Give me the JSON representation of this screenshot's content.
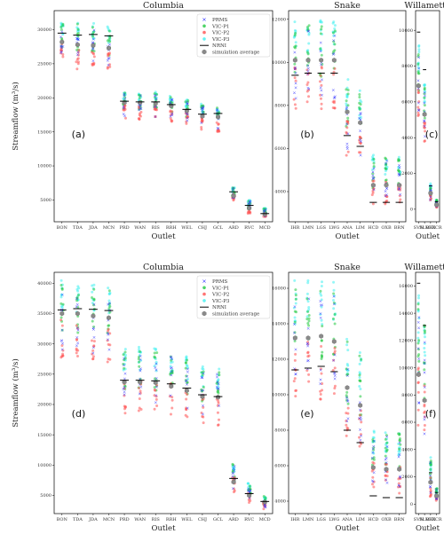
{
  "colors": {
    "prms": "#3a3aff",
    "p1": "#20c840",
    "p2": "#ff5050",
    "p3": "#40f0f0",
    "nrni": "#000000",
    "avg": "#8a8a8a"
  },
  "legend": {
    "labels": [
      "PRMS",
      "VIC-P1",
      "VIC-P2",
      "VIC-P3",
      "NRNI",
      "simulation average"
    ]
  },
  "ylabel": "Streamflow (m³/s)",
  "xlabel": "Outlet",
  "chart_data": [
    {
      "id": "a",
      "type": "scatter",
      "row": 0,
      "basin": "Columbia",
      "title": "Columbia",
      "panel_label": "(a)",
      "ylim": [
        1800,
        32800
      ],
      "yticks": [
        5000,
        10000,
        15000,
        20000,
        25000,
        30000
      ],
      "categories": [
        "BON",
        "TDA",
        "JDA",
        "MCN",
        "PRD",
        "WAN",
        "RIS",
        "RRH",
        "WEL",
        "CHJ",
        "GCL",
        "ARD",
        "RVC",
        "MCD"
      ],
      "nrni": [
        29500,
        29200,
        29300,
        29100,
        19500,
        19400,
        19400,
        19000,
        18300,
        17600,
        17700,
        6200,
        4200,
        3000
      ],
      "average": [
        28200,
        27800,
        27700,
        27300,
        19300,
        19300,
        19200,
        18800,
        18100,
        17300,
        17200,
        5600,
        3800,
        2900
      ],
      "range": [
        [
          24500,
          31500
        ],
        [
          24200,
          31200
        ],
        [
          24000,
          31000
        ],
        [
          23800,
          30500
        ],
        [
          16800,
          21000
        ],
        [
          16800,
          21000
        ],
        [
          16800,
          20900
        ],
        [
          16300,
          20500
        ],
        [
          15800,
          19800
        ],
        [
          15200,
          19200
        ],
        [
          15000,
          19000
        ],
        [
          4800,
          7000
        ],
        [
          3000,
          5000
        ],
        [
          2500,
          3800
        ]
      ]
    },
    {
      "id": "b",
      "type": "scatter",
      "row": 0,
      "basin": "Snake",
      "title": "Snake",
      "panel_label": "(b)",
      "ylim": [
        2600,
        12400
      ],
      "yticks": [
        4000,
        6000,
        8000,
        10000,
        12000
      ],
      "categories": [
        "IHR",
        "LMN",
        "LGS",
        "LWG",
        "ANA",
        "LIM",
        "HCD",
        "OXB",
        "BRN"
      ],
      "nrni": [
        9400,
        9500,
        9500,
        9500,
        6600,
        6100,
        3500,
        3500,
        3500
      ],
      "average": [
        10100,
        10100,
        10100,
        10100,
        7700,
        7200,
        4300,
        4300,
        4300
      ],
      "range": [
        [
          7800,
          12000
        ],
        [
          7800,
          12000
        ],
        [
          7800,
          12000
        ],
        [
          7800,
          12000
        ],
        [
          5300,
          9300
        ],
        [
          4900,
          8700
        ],
        [
          3300,
          5700
        ],
        [
          3300,
          5700
        ],
        [
          3300,
          5700
        ]
      ]
    },
    {
      "id": "c",
      "type": "scatter",
      "row": 0,
      "basin": "Willamette",
      "title": "Willamette",
      "panel_label": "(c)",
      "ylim": [
        -700,
        11100
      ],
      "yticks": [
        0,
        2000,
        4000,
        6000,
        8000,
        10000
      ],
      "categories": [
        "SVN",
        "SLM",
        "DEX",
        "HCR"
      ],
      "nrni": [
        9900,
        7800,
        1300,
        420
      ],
      "average": [
        6900,
        5300,
        900,
        250
      ],
      "range": [
        [
          5000,
          9200
        ],
        [
          3600,
          7000
        ],
        [
          400,
          1500
        ],
        [
          100,
          550
        ]
      ]
    },
    {
      "id": "d",
      "type": "scatter",
      "row": 1,
      "basin": "Columbia",
      "title": "Columbia",
      "panel_label": "(d)",
      "ylim": [
        2000,
        41800
      ],
      "yticks": [
        5000,
        10000,
        15000,
        20000,
        25000,
        30000,
        35000,
        40000
      ],
      "categories": [
        "BON",
        "TDA",
        "JDA",
        "MCN",
        "PRD",
        "WAN",
        "RIS",
        "RRH",
        "WEL",
        "CHJ",
        "GCL",
        "ARD",
        "RVC",
        "MCD"
      ],
      "nrni": [
        35600,
        35800,
        35700,
        35500,
        24000,
        24000,
        23900,
        23400,
        22700,
        21600,
        21300,
        7800,
        5300,
        4000
      ],
      "average": [
        35000,
        35000,
        34600,
        34300,
        23700,
        23700,
        23600,
        23000,
        22300,
        21300,
        21200,
        7200,
        5000,
        3900
      ],
      "range": [
        [
          27500,
          40500
        ],
        [
          27300,
          40000
        ],
        [
          27200,
          39800
        ],
        [
          27000,
          39500
        ],
        [
          18500,
          29500
        ],
        [
          18500,
          29500
        ],
        [
          18500,
          29300
        ],
        [
          18000,
          29000
        ],
        [
          17500,
          28000
        ],
        [
          16800,
          26500
        ],
        [
          16500,
          26000
        ],
        [
          5500,
          10500
        ],
        [
          3700,
          7000
        ],
        [
          2700,
          5000
        ]
      ]
    },
    {
      "id": "e",
      "type": "scatter",
      "row": 1,
      "basin": "Snake",
      "title": "Snake",
      "panel_label": "(e)",
      "ylim": [
        3300,
        16900
      ],
      "yticks": [
        4000,
        6000,
        8000,
        10000,
        12000,
        14000,
        16000
      ],
      "categories": [
        "IHR",
        "LMN",
        "LGS",
        "LWG",
        "ANA",
        "LIM",
        "HCD",
        "OXB",
        "BRN"
      ],
      "nrni": [
        11400,
        11500,
        11600,
        11300,
        8000,
        7300,
        4300,
        4200,
        4200
      ],
      "average": [
        13200,
        13200,
        13300,
        13000,
        10400,
        9400,
        5900,
        5800,
        5800
      ],
      "range": [
        [
          9600,
          16500
        ],
        [
          9600,
          16500
        ],
        [
          9600,
          16500
        ],
        [
          9500,
          16400
        ],
        [
          7000,
          13500
        ],
        [
          6500,
          12500
        ],
        [
          4500,
          8000
        ],
        [
          4400,
          8000
        ],
        [
          4300,
          8000
        ]
      ]
    },
    {
      "id": "f",
      "type": "scatter",
      "row": 1,
      "basin": "Willamette",
      "title": "Willamette",
      "panel_label": "(f)",
      "ylim": [
        -700,
        17000
      ],
      "yticks": [
        0,
        2000,
        4000,
        6000,
        8000,
        10000,
        12000,
        14000,
        16000
      ],
      "categories": [
        "SVN",
        "SLM",
        "DEX",
        "HCR"
      ],
      "nrni": [
        16200,
        13100,
        2300,
        850
      ],
      "average": [
        9500,
        7600,
        1600,
        600
      ],
      "range": [
        [
          5500,
          15400
        ],
        [
          4000,
          13600
        ],
        [
          500,
          3500
        ],
        [
          200,
          1200
        ]
      ]
    }
  ]
}
